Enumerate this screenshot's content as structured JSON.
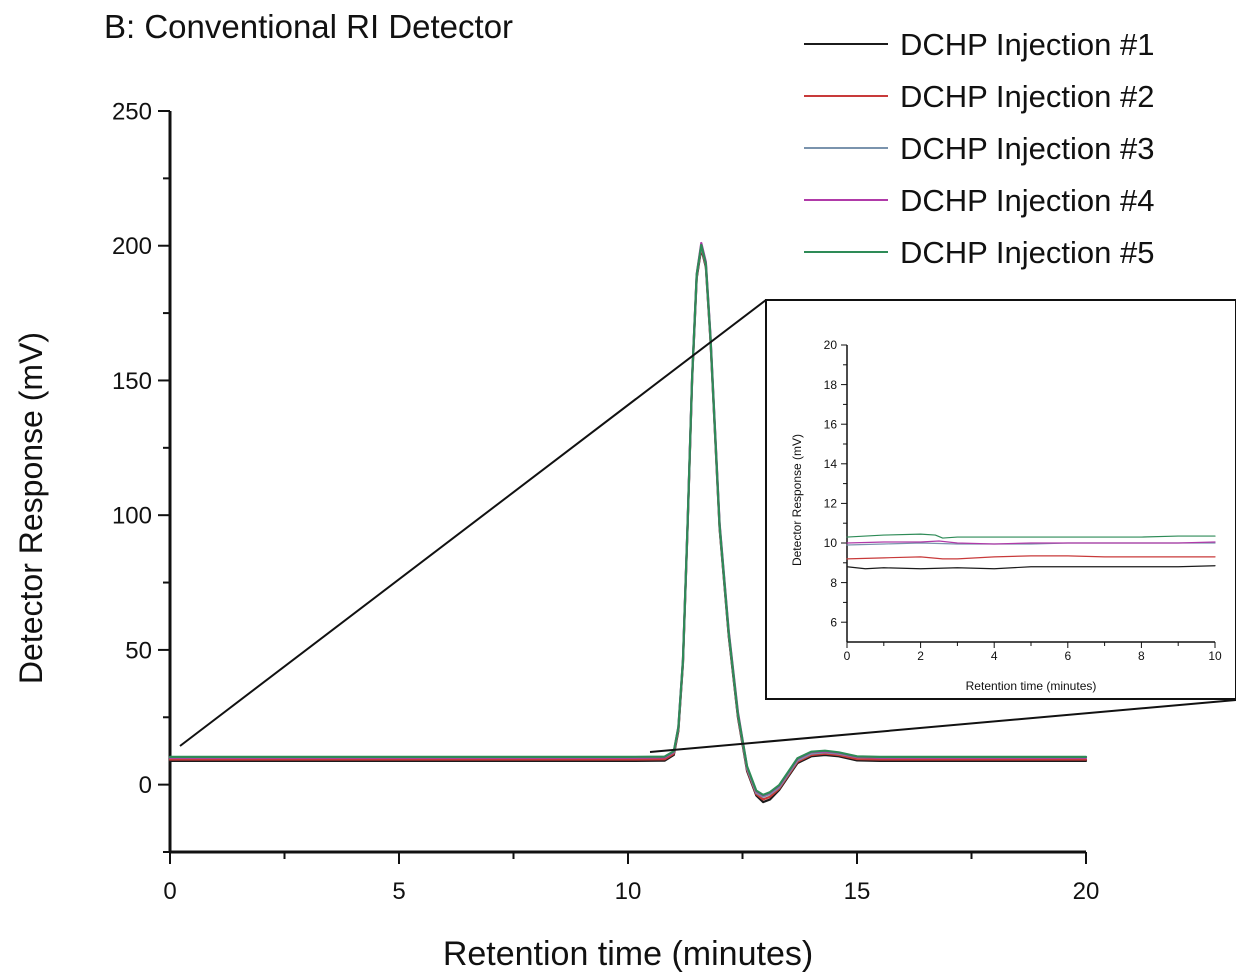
{
  "chart_data": [
    {
      "type": "line",
      "title": "B: Conventional RI Detector",
      "xlabel": "Retention time (minutes)",
      "ylabel": "Detector Response (mV)",
      "xlim": [
        0,
        20
      ],
      "ylim": [
        -25,
        250
      ],
      "x_ticks": [
        0,
        5,
        10,
        15,
        20
      ],
      "y_ticks": [
        0,
        50,
        100,
        150,
        200,
        250
      ],
      "grid": false,
      "legend_position": "top-right",
      "series": [
        {
          "name": "DCHP Injection #1",
          "color": "#1b1b1b",
          "points": [
            [
              0,
              8.8
            ],
            [
              2,
              8.8
            ],
            [
              4,
              8.8
            ],
            [
              6,
              8.8
            ],
            [
              8,
              8.8
            ],
            [
              10,
              8.8
            ],
            [
              10.8,
              8.9
            ],
            [
              11.0,
              11
            ],
            [
              11.1,
              20
            ],
            [
              11.2,
              45
            ],
            [
              11.3,
              95
            ],
            [
              11.4,
              150
            ],
            [
              11.5,
              188
            ],
            [
              11.6,
              199
            ],
            [
              11.7,
              192
            ],
            [
              11.8,
              165
            ],
            [
              11.9,
              130
            ],
            [
              12.0,
              95
            ],
            [
              12.2,
              55
            ],
            [
              12.4,
              25
            ],
            [
              12.6,
              5
            ],
            [
              12.8,
              -4
            ],
            [
              12.95,
              -6.5
            ],
            [
              13.1,
              -5.5
            ],
            [
              13.3,
              -2
            ],
            [
              13.5,
              3
            ],
            [
              13.7,
              8
            ],
            [
              14.0,
              10.5
            ],
            [
              14.3,
              11
            ],
            [
              14.6,
              10.5
            ],
            [
              15.0,
              9
            ],
            [
              15.5,
              8.8
            ],
            [
              16,
              8.8
            ],
            [
              18,
              8.8
            ],
            [
              20,
              8.8
            ]
          ]
        },
        {
          "name": "DCHP Injection #2",
          "color": "#c83a3a",
          "points": [
            [
              0,
              9.3
            ],
            [
              2,
              9.3
            ],
            [
              4,
              9.3
            ],
            [
              6,
              9.3
            ],
            [
              8,
              9.3
            ],
            [
              10,
              9.3
            ],
            [
              10.8,
              9.4
            ],
            [
              11.0,
              11.5
            ],
            [
              11.1,
              20.5
            ],
            [
              11.2,
              45.5
            ],
            [
              11.3,
              95.5
            ],
            [
              11.4,
              150.5
            ],
            [
              11.5,
              188.5
            ],
            [
              11.6,
              199.5
            ],
            [
              11.7,
              192.5
            ],
            [
              11.8,
              165.5
            ],
            [
              11.9,
              130.5
            ],
            [
              12.0,
              95.5
            ],
            [
              12.2,
              55.5
            ],
            [
              12.4,
              25.5
            ],
            [
              12.6,
              5.5
            ],
            [
              12.8,
              -3.5
            ],
            [
              12.95,
              -5.5
            ],
            [
              13.1,
              -4.5
            ],
            [
              13.3,
              -1.5
            ],
            [
              13.5,
              3.5
            ],
            [
              13.7,
              8.5
            ],
            [
              14.0,
              11
            ],
            [
              14.3,
              11.5
            ],
            [
              14.6,
              11
            ],
            [
              15.0,
              9.5
            ],
            [
              15.5,
              9.3
            ],
            [
              16,
              9.3
            ],
            [
              18,
              9.3
            ],
            [
              20,
              9.3
            ]
          ]
        },
        {
          "name": "DCHP Injection #3",
          "color": "#7a93ad",
          "points": [
            [
              0,
              10
            ],
            [
              2,
              10
            ],
            [
              4,
              10
            ],
            [
              6,
              10
            ],
            [
              8,
              10
            ],
            [
              10,
              10
            ],
            [
              10.8,
              10.1
            ],
            [
              11.0,
              12
            ],
            [
              11.1,
              21
            ],
            [
              11.2,
              46
            ],
            [
              11.3,
              96
            ],
            [
              11.4,
              151
            ],
            [
              11.5,
              189
            ],
            [
              11.6,
              200
            ],
            [
              11.7,
              193
            ],
            [
              11.8,
              166
            ],
            [
              11.9,
              131
            ],
            [
              12.0,
              96
            ],
            [
              12.2,
              56
            ],
            [
              12.4,
              26
            ],
            [
              12.6,
              6
            ],
            [
              12.8,
              -3
            ],
            [
              12.95,
              -4.5
            ],
            [
              13.1,
              -3.5
            ],
            [
              13.3,
              -1
            ],
            [
              13.5,
              4
            ],
            [
              13.7,
              9
            ],
            [
              14.0,
              11.5
            ],
            [
              14.3,
              12
            ],
            [
              14.6,
              11.5
            ],
            [
              15.0,
              10.2
            ],
            [
              15.5,
              10
            ],
            [
              16,
              10
            ],
            [
              18,
              10
            ],
            [
              20,
              10
            ]
          ]
        },
        {
          "name": "DCHP Injection #4",
          "color": "#b03aa8",
          "points": [
            [
              0,
              10
            ],
            [
              2,
              10
            ],
            [
              4,
              10
            ],
            [
              6,
              10
            ],
            [
              8,
              10
            ],
            [
              10,
              10
            ],
            [
              10.8,
              10.1
            ],
            [
              11.0,
              12.2
            ],
            [
              11.1,
              21.5
            ],
            [
              11.2,
              46.5
            ],
            [
              11.3,
              96.5
            ],
            [
              11.4,
              151.5
            ],
            [
              11.5,
              189.5
            ],
            [
              11.6,
              201
            ],
            [
              11.7,
              194
            ],
            [
              11.8,
              167
            ],
            [
              11.9,
              132
            ],
            [
              12.0,
              97
            ],
            [
              12.2,
              57
            ],
            [
              12.4,
              27
            ],
            [
              12.6,
              6.5
            ],
            [
              12.8,
              -2.5
            ],
            [
              12.95,
              -4
            ],
            [
              13.1,
              -3
            ],
            [
              13.3,
              -0.5
            ],
            [
              13.5,
              4.5
            ],
            [
              13.7,
              9.5
            ],
            [
              14.0,
              12
            ],
            [
              14.3,
              12.3
            ],
            [
              14.6,
              11.8
            ],
            [
              15.0,
              10.3
            ],
            [
              15.5,
              10
            ],
            [
              16,
              10
            ],
            [
              18,
              10
            ],
            [
              20,
              10
            ]
          ]
        },
        {
          "name": "DCHP Injection #5",
          "color": "#2e8b57",
          "points": [
            [
              0,
              10.3
            ],
            [
              2,
              10.3
            ],
            [
              4,
              10.3
            ],
            [
              6,
              10.3
            ],
            [
              8,
              10.3
            ],
            [
              10,
              10.3
            ],
            [
              10.8,
              10.4
            ],
            [
              11.0,
              12.4
            ],
            [
              11.1,
              21.3
            ],
            [
              11.2,
              46.3
            ],
            [
              11.3,
              96.3
            ],
            [
              11.4,
              151.3
            ],
            [
              11.5,
              189.3
            ],
            [
              11.6,
              200.3
            ],
            [
              11.7,
              193.3
            ],
            [
              11.8,
              166.3
            ],
            [
              11.9,
              131.3
            ],
            [
              12.0,
              96.3
            ],
            [
              12.2,
              56.3
            ],
            [
              12.4,
              26.3
            ],
            [
              12.6,
              6.8
            ],
            [
              12.8,
              -2.2
            ],
            [
              12.95,
              -3.8
            ],
            [
              13.1,
              -2.8
            ],
            [
              13.3,
              -0.2
            ],
            [
              13.5,
              4.8
            ],
            [
              13.7,
              9.8
            ],
            [
              14.0,
              12.2
            ],
            [
              14.3,
              12.6
            ],
            [
              14.6,
              12
            ],
            [
              15.0,
              10.5
            ],
            [
              15.5,
              10.3
            ],
            [
              16,
              10.3
            ],
            [
              18,
              10.3
            ],
            [
              20,
              10.3
            ]
          ]
        }
      ]
    },
    {
      "type": "line",
      "title": "",
      "xlabel": "Retention time (minutes)",
      "ylabel": "Detector Response (mV)",
      "xlim": [
        0,
        10
      ],
      "ylim": [
        5,
        20
      ],
      "x_ticks": [
        0,
        2,
        4,
        6,
        8,
        10
      ],
      "y_ticks": [
        6,
        8,
        10,
        12,
        14,
        16,
        18,
        20
      ],
      "grid": false,
      "series": [
        {
          "name": "DCHP Injection #1",
          "color": "#1b1b1b",
          "points": [
            [
              0,
              8.8
            ],
            [
              0.5,
              8.7
            ],
            [
              1,
              8.75
            ],
            [
              2,
              8.7
            ],
            [
              3,
              8.75
            ],
            [
              4,
              8.7
            ],
            [
              5,
              8.8
            ],
            [
              6,
              8.8
            ],
            [
              7,
              8.8
            ],
            [
              8,
              8.8
            ],
            [
              9,
              8.8
            ],
            [
              10,
              8.85
            ]
          ]
        },
        {
          "name": "DCHP Injection #2",
          "color": "#c83a3a",
          "points": [
            [
              0,
              9.2
            ],
            [
              1,
              9.25
            ],
            [
              2,
              9.3
            ],
            [
              2.6,
              9.2
            ],
            [
              3,
              9.2
            ],
            [
              4,
              9.3
            ],
            [
              5,
              9.35
            ],
            [
              6,
              9.35
            ],
            [
              7,
              9.3
            ],
            [
              8,
              9.3
            ],
            [
              9,
              9.3
            ],
            [
              10,
              9.3
            ]
          ]
        },
        {
          "name": "DCHP Injection #3",
          "color": "#7a93ad",
          "points": [
            [
              0,
              9.9
            ],
            [
              1,
              9.95
            ],
            [
              2,
              10
            ],
            [
              3,
              9.95
            ],
            [
              4,
              9.95
            ],
            [
              5,
              9.95
            ],
            [
              6,
              10
            ],
            [
              7,
              10
            ],
            [
              8,
              10
            ],
            [
              9,
              10
            ],
            [
              10,
              10
            ]
          ]
        },
        {
          "name": "DCHP Injection #4",
          "color": "#b03aa8",
          "points": [
            [
              0,
              10
            ],
            [
              1,
              10.05
            ],
            [
              2,
              10.05
            ],
            [
              2.5,
              10.1
            ],
            [
              3,
              10
            ],
            [
              4,
              9.95
            ],
            [
              5,
              10
            ],
            [
              6,
              10
            ],
            [
              7,
              10
            ],
            [
              8,
              10
            ],
            [
              9,
              10
            ],
            [
              10,
              10.05
            ]
          ]
        },
        {
          "name": "DCHP Injection #5",
          "color": "#2e8b57",
          "points": [
            [
              0,
              10.3
            ],
            [
              0.5,
              10.35
            ],
            [
              1,
              10.4
            ],
            [
              2,
              10.45
            ],
            [
              2.4,
              10.4
            ],
            [
              2.6,
              10.25
            ],
            [
              3,
              10.3
            ],
            [
              4,
              10.3
            ],
            [
              5,
              10.3
            ],
            [
              6,
              10.3
            ],
            [
              7,
              10.3
            ],
            [
              8,
              10.3
            ],
            [
              9,
              10.35
            ],
            [
              10,
              10.35
            ]
          ]
        }
      ]
    }
  ]
}
